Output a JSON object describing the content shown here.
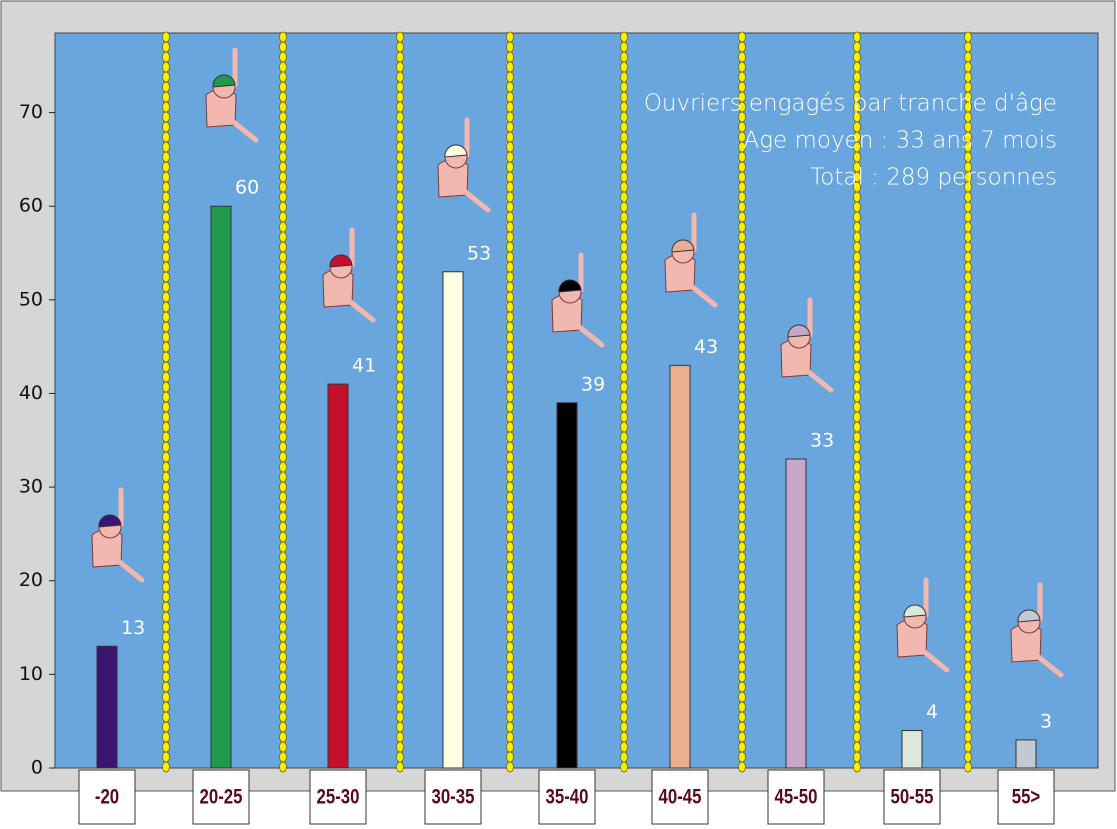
{
  "chart_data": {
    "type": "bar",
    "title_lines": [
      "Ouvriers engagés par tranche d'âge",
      "Age moyen : 33 ans 7 mois",
      "Total : 289 personnes"
    ],
    "categories": [
      "-20",
      "20-25",
      "25-30",
      "30-35",
      "35-40",
      "40-45",
      "45-50",
      "50-55",
      "55>"
    ],
    "values": [
      13,
      60,
      41,
      53,
      39,
      43,
      33,
      4,
      3
    ],
    "colors": [
      "#3b1670",
      "#1f9a4c",
      "#c4102c",
      "#fffde2",
      "#000000",
      "#e8b08e",
      "#c8a6c8",
      "#dbe8da",
      "#c2c9d2"
    ],
    "ylim": [
      0,
      78.5
    ],
    "yticks": [
      0,
      10,
      20,
      30,
      40,
      50,
      60,
      70
    ]
  }
}
